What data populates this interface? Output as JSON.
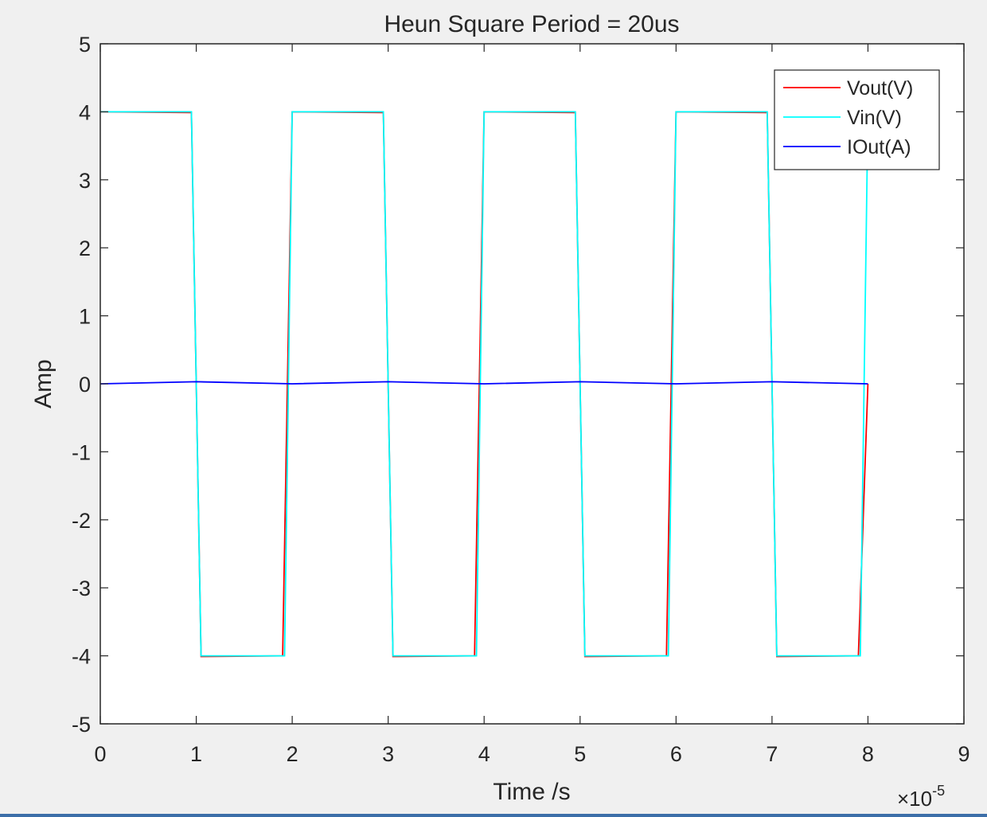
{
  "chart_data": {
    "type": "line",
    "title": "Heun Square Period = 20us",
    "xlabel": "Time /s",
    "ylabel": "Amp",
    "x_exponent_label": {
      "base": "×10",
      "exp": "-5"
    },
    "xlim": [
      0,
      9
    ],
    "ylim": [
      -5,
      5
    ],
    "xticks": [
      0,
      1,
      2,
      3,
      4,
      5,
      6,
      7,
      8,
      9
    ],
    "yticks": [
      -5,
      -4,
      -3,
      -2,
      -1,
      0,
      1,
      2,
      3,
      4,
      5
    ],
    "grid": false,
    "legend_position": "top-right",
    "series": [
      {
        "name": "Vout(V)",
        "color": "#ff0000",
        "x": [
          0,
          0.95,
          1.05,
          1.9,
          2.0,
          2.95,
          3.05,
          3.9,
          4.0,
          4.95,
          5.05,
          5.9,
          6.0,
          6.95,
          7.05,
          7.9,
          8.0
        ],
        "y": [
          4,
          3.99,
          -4.01,
          -4.0,
          4.0,
          3.99,
          -4.01,
          -4.0,
          4.0,
          3.99,
          -4.01,
          -4.0,
          4.0,
          3.99,
          -4.01,
          -4.0,
          0
        ]
      },
      {
        "name": "Vin(V)",
        "color": "#00ffff",
        "x": [
          0,
          0.95,
          1.05,
          1.92,
          2.0,
          2.95,
          3.05,
          3.92,
          4.0,
          4.95,
          5.05,
          5.92,
          6.0,
          6.95,
          7.05,
          7.92,
          8.0
        ],
        "y": [
          4,
          4,
          -4,
          -4,
          4,
          4,
          -4,
          -4,
          4,
          4,
          -4,
          -4,
          4,
          4,
          -4,
          -4,
          4
        ]
      },
      {
        "name": "IOut(A)",
        "color": "#0000ff",
        "x": [
          0,
          1.0,
          2.0,
          3.0,
          4.0,
          5.0,
          6.0,
          7.0,
          8.0
        ],
        "y": [
          0,
          0.03,
          0,
          0.03,
          0,
          0.03,
          0,
          0.03,
          0
        ]
      }
    ]
  }
}
